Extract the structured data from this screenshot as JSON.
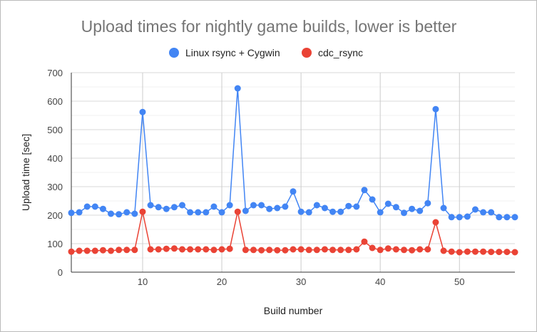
{
  "chart_data": {
    "type": "line",
    "title": "Upload times for nightly game builds, lower is better",
    "xlabel": "Build number",
    "ylabel": "Upload time [sec]",
    "xlim": [
      1,
      57
    ],
    "ylim": [
      0,
      700
    ],
    "xticks": [
      10,
      20,
      30,
      40,
      50
    ],
    "yticks": [
      0,
      100,
      200,
      300,
      400,
      500,
      600,
      700
    ],
    "grid": true,
    "legend": "top",
    "x": [
      1,
      2,
      3,
      4,
      5,
      6,
      7,
      8,
      9,
      10,
      11,
      12,
      13,
      14,
      15,
      16,
      17,
      18,
      19,
      20,
      21,
      22,
      23,
      24,
      25,
      26,
      27,
      28,
      29,
      30,
      31,
      32,
      33,
      34,
      35,
      36,
      37,
      38,
      39,
      40,
      41,
      42,
      43,
      44,
      45,
      46,
      47,
      48,
      49,
      50,
      51,
      52,
      53,
      54,
      55,
      56,
      57
    ],
    "series": [
      {
        "name": "Linux rsync + Cygwin",
        "color": "#4285f4",
        "values": [
          208,
          210,
          230,
          230,
          222,
          205,
          203,
          210,
          205,
          562,
          235,
          228,
          222,
          228,
          235,
          210,
          210,
          210,
          230,
          210,
          235,
          645,
          215,
          235,
          235,
          222,
          225,
          230,
          283,
          212,
          210,
          235,
          225,
          212,
          212,
          232,
          230,
          288,
          255,
          210,
          240,
          228,
          208,
          222,
          215,
          242,
          572,
          225,
          193,
          193,
          195,
          220,
          210,
          210,
          193,
          193,
          193
        ]
      },
      {
        "name": "cdc_rsync",
        "color": "#ea4335",
        "values": [
          72,
          75,
          75,
          75,
          77,
          75,
          78,
          78,
          78,
          212,
          80,
          80,
          82,
          83,
          80,
          80,
          80,
          80,
          78,
          80,
          82,
          212,
          78,
          78,
          77,
          78,
          77,
          77,
          80,
          80,
          78,
          78,
          80,
          78,
          78,
          78,
          80,
          107,
          85,
          78,
          83,
          80,
          78,
          77,
          80,
          80,
          175,
          75,
          72,
          70,
          72,
          72,
          72,
          71,
          71,
          71,
          70
        ]
      }
    ]
  }
}
